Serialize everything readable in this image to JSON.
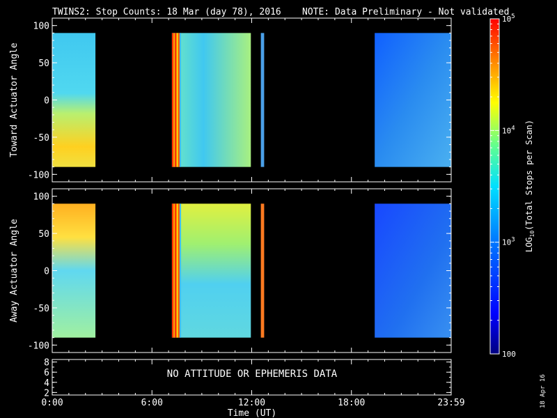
{
  "title": {
    "main": "TWINS2: Stop Counts: 18 Mar (day  78), 2016",
    "note": "NOTE: Data Preliminary - Not validated",
    "note_color": "#ff2020"
  },
  "stamp": "18 Apr 16",
  "chart_data": [
    {
      "type": "heatmap",
      "panel": "toward",
      "ylabel": "Toward Actuator Angle",
      "ylim": [
        -110,
        110
      ],
      "yticks": [
        "100",
        "50",
        "0",
        "-50",
        "-100"
      ],
      "y_range_data": [
        -90,
        90
      ],
      "data_blocks_hours": [
        [
          0.0,
          2.6
        ],
        [
          7.2,
          11.95
        ],
        [
          12.55,
          12.75
        ],
        [
          19.4,
          24.0
        ]
      ]
    },
    {
      "type": "heatmap",
      "panel": "away",
      "ylabel": "Away Actuator Angle",
      "ylim": [
        -110,
        110
      ],
      "yticks": [
        "100",
        "50",
        "0",
        "-50",
        "-100"
      ],
      "y_range_data": [
        -90,
        90
      ],
      "data_blocks_hours": [
        [
          0.0,
          2.6
        ],
        [
          7.2,
          11.95
        ],
        [
          12.55,
          12.75
        ],
        [
          19.4,
          24.0
        ]
      ]
    },
    {
      "type": "line",
      "panel": "ephemeris",
      "ylim": [
        1.5,
        8.5
      ],
      "yticks": [
        "8",
        "6",
        "4",
        "2"
      ],
      "message": "NO ATTITUDE OR EPHEMERIS DATA"
    }
  ],
  "xaxis": {
    "label": "Time (UT)",
    "range_hours": [
      0,
      24
    ],
    "ticks": [
      "0:00",
      "6:00",
      "12:00",
      "18:00",
      "23:59"
    ]
  },
  "colorbar": {
    "label": "LOG10(Total Stops per Scan)",
    "label_base": "LOG",
    "label_sub": "10",
    "label_rest": "(Total Stops per Scan)",
    "range_log": [
      2,
      5
    ],
    "ticks": [
      "10",
      "10",
      "10",
      "100"
    ],
    "tick_exps": [
      "5",
      "4",
      "3",
      ""
    ]
  }
}
